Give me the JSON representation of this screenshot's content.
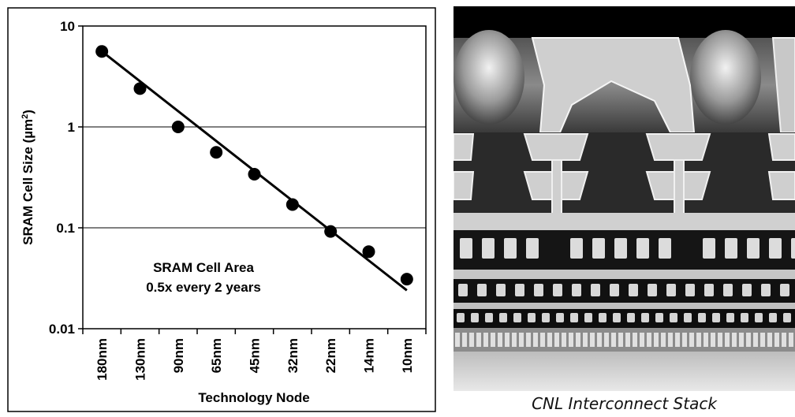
{
  "chart_data": {
    "type": "scatter",
    "title": "",
    "xlabel": "Technology Node",
    "ylabel_main": "SRAM Cell Size (µm",
    "ylabel_sup": "2",
    "ylabel_close": ")",
    "yscale": "log",
    "ylim": [
      0.01,
      10
    ],
    "ytick_labels": [
      "10",
      "1",
      "0.1",
      "0.01"
    ],
    "ytick_values": [
      10,
      1,
      0.1,
      0.01
    ],
    "categories": [
      "180nm",
      "130nm",
      "90nm",
      "65nm",
      "45nm",
      "32nm",
      "22nm",
      "14nm",
      "10nm"
    ],
    "values": [
      5.6,
      2.4,
      1.0,
      0.56,
      0.34,
      0.17,
      0.092,
      0.058,
      0.031
    ],
    "trendline": {
      "start": [
        0,
        5.6
      ],
      "end": [
        8,
        0.024
      ]
    },
    "annotation_line1": "SRAM Cell Area",
    "annotation_line2": "0.5x every 2 years",
    "grid": "horizontal",
    "legend": "none"
  },
  "image_panel": {
    "caption": "CNL Interconnect Stack"
  },
  "colors": {
    "marker": "#000000",
    "line": "#000000",
    "photo_dark": "#1a1a1a",
    "photo_light": "#d8d8d8"
  }
}
